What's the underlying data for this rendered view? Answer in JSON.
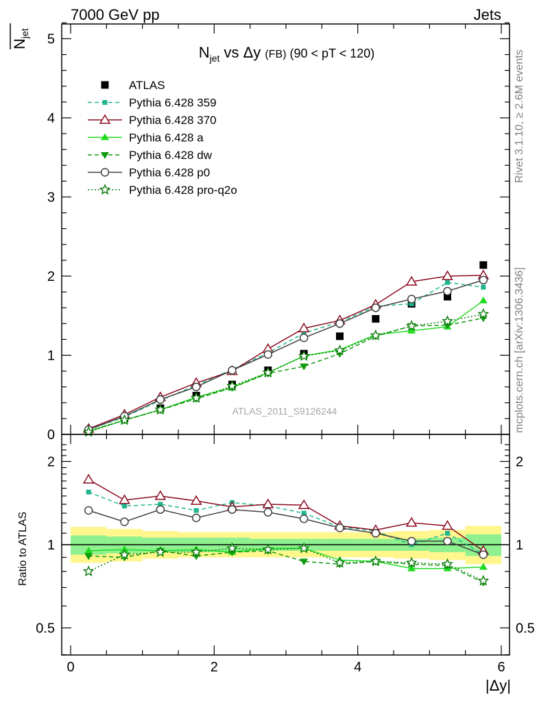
{
  "header": {
    "left": "7000 GeV pp",
    "right": "Jets"
  },
  "main_title": {
    "prefix": "N",
    "sub": "jet",
    "mid": " vs Δy ",
    "small": "(FB)",
    "suffix": " (90 < pT < 120)"
  },
  "y_label_main": {
    "text": "N",
    "sub": "jet"
  },
  "y_label_ratio": "Ratio to ATLAS",
  "x_label": "|Δy|",
  "side_labels": {
    "rivet": "Rivet 3.1.10, ≥ 2.6M events",
    "mcplots": "mcplots.cern.ch [arXiv:1306.3436]"
  },
  "watermark": "ATLAS_2011_S9126244",
  "colors": {
    "atlas": "#000000",
    "p359": "#1fb58f",
    "p370": "#8b0a1f",
    "pa": "#1fdc1f",
    "pdw": "#0f9a0f",
    "pp0": "#404040",
    "pq2o": "#0a7a0a",
    "band_yellow": "#fff68c",
    "band_green": "#8ef08e"
  },
  "chart_data": {
    "type": "line",
    "x_axis": {
      "label": "|Δy|",
      "range": [
        0,
        6
      ],
      "ticks": [
        "0",
        "2",
        "4",
        "6"
      ]
    },
    "main_y_axis": {
      "label": "N_jet",
      "range": [
        0,
        5.2
      ],
      "ticks": [
        "0",
        "1",
        "2",
        "3",
        "4",
        "5"
      ]
    },
    "ratio_y_axis": {
      "label": "Ratio to ATLAS",
      "scale": "log",
      "range": [
        0.4,
        2.4
      ],
      "ticks": [
        "0.5",
        "1",
        "2"
      ]
    },
    "x": [
      0.25,
      0.75,
      1.25,
      1.75,
      2.25,
      2.75,
      3.25,
      3.75,
      4.25,
      4.75,
      5.25,
      5.75
    ],
    "legend_position": "top-left",
    "series": [
      {
        "name": "ATLAS",
        "key": "atlas",
        "marker": "square",
        "values": [
          0.04,
          0.2,
          0.33,
          0.49,
          0.63,
          0.81,
          1.02,
          1.24,
          1.46,
          1.65,
          1.74,
          2.14
        ]
      },
      {
        "name": "Pythia 6.428 359",
        "key": "p359",
        "marker": "small-square",
        "dash": "dashed",
        "values": [
          0.06,
          0.22,
          0.43,
          0.62,
          0.82,
          1.03,
          1.28,
          1.42,
          1.62,
          1.65,
          1.92,
          1.86
        ]
      },
      {
        "name": "Pythia 6.428 370",
        "key": "p370",
        "marker": "open-triangle",
        "dash": "solid",
        "values": [
          0.07,
          0.25,
          0.47,
          0.65,
          0.8,
          1.08,
          1.34,
          1.44,
          1.64,
          1.93,
          2.0,
          2.01
        ]
      },
      {
        "name": "Pythia 6.428 a",
        "key": "pa",
        "marker": "triangle",
        "dash": "solid",
        "values": [
          0.04,
          0.18,
          0.31,
          0.47,
          0.59,
          0.78,
          0.99,
          1.07,
          1.26,
          1.31,
          1.36,
          1.69
        ]
      },
      {
        "name": "Pythia 6.428 dw",
        "key": "pdw",
        "marker": "triangle-down",
        "dash": "dashed",
        "values": [
          0.04,
          0.18,
          0.31,
          0.45,
          0.59,
          0.77,
          0.86,
          1.02,
          1.24,
          1.37,
          1.38,
          1.47
        ]
      },
      {
        "name": "Pythia 6.428 p0",
        "key": "pp0",
        "marker": "open-circle",
        "dash": "solid",
        "values": [
          0.06,
          0.23,
          0.44,
          0.6,
          0.81,
          1.01,
          1.22,
          1.4,
          1.6,
          1.71,
          1.81,
          1.95
        ]
      },
      {
        "name": "Pythia 6.428 pro-q2o",
        "key": "pq2o",
        "marker": "star",
        "dash": "dotted",
        "values": [
          0.03,
          0.18,
          0.31,
          0.46,
          0.61,
          0.78,
          0.99,
          1.06,
          1.25,
          1.37,
          1.43,
          1.52
        ]
      }
    ],
    "ratio_series": [
      {
        "key": "p359",
        "values": [
          1.55,
          1.38,
          1.4,
          1.33,
          1.42,
          1.38,
          1.3,
          1.16,
          1.12,
          1.0,
          1.1,
          0.92
        ]
      },
      {
        "key": "p370",
        "values": [
          1.72,
          1.45,
          1.5,
          1.44,
          1.37,
          1.4,
          1.39,
          1.17,
          1.13,
          1.2,
          1.17,
          0.95
        ]
      },
      {
        "key": "pa",
        "values": [
          0.95,
          0.96,
          0.95,
          0.96,
          0.94,
          0.97,
          0.97,
          0.88,
          0.87,
          0.82,
          0.82,
          0.83
        ]
      },
      {
        "key": "pdw",
        "values": [
          0.91,
          0.9,
          0.95,
          0.91,
          0.94,
          0.95,
          0.87,
          0.85,
          0.87,
          0.85,
          0.84,
          0.73
        ]
      },
      {
        "key": "pp0",
        "values": [
          1.33,
          1.21,
          1.34,
          1.25,
          1.34,
          1.31,
          1.24,
          1.15,
          1.1,
          1.03,
          1.03,
          0.92
        ]
      },
      {
        "key": "pq2o",
        "values": [
          0.8,
          0.92,
          0.94,
          0.94,
          0.97,
          0.96,
          0.97,
          0.86,
          0.87,
          0.86,
          0.85,
          0.74
        ]
      }
    ],
    "uncertainty_bands": {
      "inner_green": [
        [
          0.92,
          1.08
        ],
        [
          0.93,
          1.07
        ],
        [
          0.94,
          1.06
        ],
        [
          0.94,
          1.06
        ],
        [
          0.94,
          1.06
        ],
        [
          0.95,
          1.05
        ],
        [
          0.95,
          1.05
        ],
        [
          0.95,
          1.05
        ],
        [
          0.95,
          1.05
        ],
        [
          0.95,
          1.05
        ],
        [
          0.94,
          1.06
        ],
        [
          0.91,
          1.09
        ]
      ],
      "outer_yellow": [
        [
          0.86,
          1.16
        ],
        [
          0.87,
          1.14
        ],
        [
          0.89,
          1.12
        ],
        [
          0.9,
          1.11
        ],
        [
          0.9,
          1.11
        ],
        [
          0.9,
          1.11
        ],
        [
          0.9,
          1.11
        ],
        [
          0.9,
          1.11
        ],
        [
          0.9,
          1.11
        ],
        [
          0.89,
          1.12
        ],
        [
          0.88,
          1.13
        ],
        [
          0.85,
          1.17
        ]
      ]
    }
  }
}
